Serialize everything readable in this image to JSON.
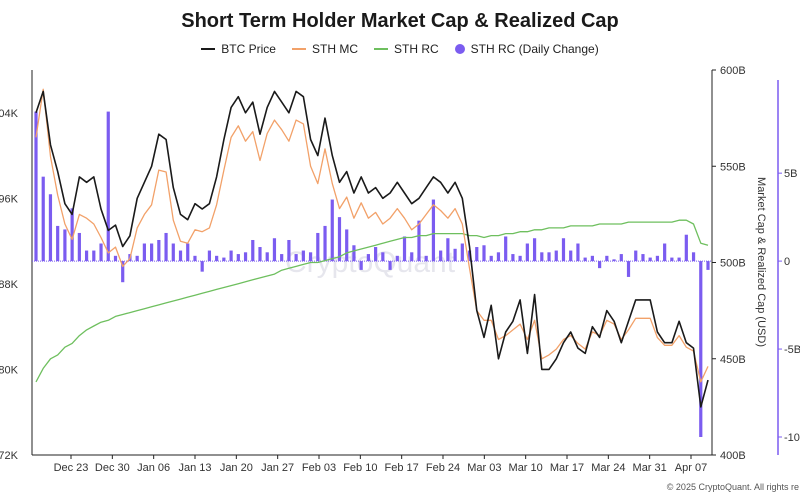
{
  "chart_data": {
    "type": "line",
    "title": "Short Term Holder Market Cap & Realized Cap",
    "x_labels": [
      "Dec 23",
      "Dec 30",
      "Jan 06",
      "Jan 13",
      "Jan 20",
      "Jan 27",
      "Feb 03",
      "Feb 10",
      "Feb 17",
      "Feb 24",
      "Mar 03",
      "Mar 10",
      "Mar 17",
      "Mar 24",
      "Mar 31",
      "Apr 07"
    ],
    "left_axis": {
      "ticks": [
        "72K",
        "80K",
        "88K",
        "96K",
        "04K"
      ],
      "range": [
        72000,
        108000
      ]
    },
    "right_axis": {
      "ticks": [
        "400B",
        "450B",
        "500B",
        "550B",
        "600B"
      ],
      "range": [
        400,
        600
      ],
      "title": "Market Cap & Realized Cap (USD)"
    },
    "far_right_axis": {
      "ticks": [
        "-10",
        "-5B",
        "0",
        "5B"
      ],
      "range": [
        -10,
        9.5
      ]
    },
    "series": [
      {
        "name": "BTC Price",
        "color": "#1a1a1a",
        "axis": "left",
        "values": [
          104000,
          106000,
          101000,
          98500,
          95500,
          94500,
          98000,
          97500,
          98000,
          95000,
          93000,
          93500,
          91500,
          92500,
          96000,
          97500,
          99000,
          102000,
          101500,
          97000,
          94500,
          94000,
          95500,
          95000,
          95500,
          98000,
          101500,
          104500,
          105500,
          104000,
          105000,
          102000,
          104500,
          106000,
          105000,
          104000,
          106000,
          105500,
          101500,
          100000,
          103500,
          100000,
          97500,
          98500,
          96500,
          98000,
          96500,
          97000,
          96000,
          96500,
          97500,
          96500,
          95500,
          96000,
          97000,
          98000,
          97500,
          96500,
          97500,
          96000,
          91500,
          85500,
          83000,
          86000,
          81000,
          83500,
          84500,
          86500,
          81500,
          87000,
          80000,
          80000,
          81000,
          82500,
          83500,
          82000,
          81500,
          84000,
          83000,
          85500,
          84500,
          82500,
          84500,
          86500,
          86500,
          86500,
          83500,
          82500,
          82500,
          84500,
          82500,
          82000,
          76500,
          79000
        ]
      },
      {
        "name": "STH MC",
        "color": "#f2a169",
        "axis": "right",
        "values": [
          565,
          590,
          555,
          535,
          520,
          512,
          525,
          523,
          520,
          513,
          505,
          508,
          498,
          502,
          518,
          525,
          530,
          548,
          547,
          522,
          511,
          510,
          517,
          516,
          518,
          530,
          548,
          565,
          571,
          563,
          568,
          553,
          567,
          574,
          569,
          563,
          574,
          572,
          550,
          541,
          559,
          541,
          528,
          534,
          523,
          531,
          523,
          526,
          520,
          523,
          528,
          523,
          517,
          520,
          525,
          530,
          527,
          523,
          528,
          520,
          497,
          475,
          470,
          470,
          460,
          462,
          465,
          468,
          460,
          470,
          450,
          452,
          455,
          460,
          462,
          458,
          455,
          464,
          462,
          470,
          468,
          460,
          465,
          471,
          471,
          471,
          461,
          457,
          457,
          462,
          456,
          454,
          438,
          446
        ]
      },
      {
        "name": "STH RC",
        "color": "#6ebf5e",
        "axis": "right",
        "values": [
          438,
          445,
          450,
          452,
          456,
          458,
          462,
          465,
          467,
          469,
          470,
          472,
          473,
          474,
          475,
          476,
          477,
          478,
          479,
          480,
          481,
          482,
          483,
          484,
          485,
          486,
          487,
          488,
          489,
          490,
          491,
          492,
          493,
          494,
          496,
          497,
          498,
          499,
          500,
          500,
          501,
          502,
          503,
          505,
          506,
          507,
          508,
          509,
          510,
          511,
          512,
          513,
          513,
          514,
          514,
          515,
          515,
          515,
          515,
          515,
          514,
          514,
          513,
          514,
          514,
          515,
          515,
          516,
          516,
          517,
          517,
          518,
          518,
          518,
          519,
          519,
          519,
          519,
          520,
          520,
          520,
          520,
          521,
          521,
          521,
          521,
          521,
          521,
          521,
          522,
          522,
          520,
          510,
          509
        ]
      },
      {
        "name": "STH RC (Daily Change)",
        "color": "#7b5cf0",
        "axis": "far_right",
        "values": [
          8.5,
          4.8,
          3.8,
          2.0,
          1.8,
          3.0,
          1.6,
          0.6,
          0.6,
          1.0,
          8.5,
          0.3,
          -1.2,
          0.4,
          0.3,
          1.0,
          1.0,
          1.2,
          1.6,
          1.0,
          0.6,
          1.0,
          0.3,
          -0.6,
          0.6,
          0.3,
          0.2,
          0.6,
          0.4,
          0.5,
          1.2,
          0.8,
          0.5,
          1.3,
          0.4,
          1.2,
          0.4,
          0.6,
          0.5,
          1.6,
          2.0,
          3.5,
          2.5,
          1.8,
          0.9,
          -0.5,
          0.4,
          0.8,
          0.5,
          -0.5,
          0.3,
          1.4,
          0.5,
          2.3,
          0.3,
          3.5,
          0.6,
          1.3,
          0.7,
          1.0,
          0.6,
          0.8,
          0.9,
          0.3,
          0.5,
          1.4,
          0.4,
          0.3,
          1.0,
          1.3,
          0.5,
          0.5,
          0.6,
          1.3,
          0.6,
          1.0,
          0.2,
          0.3,
          -0.4,
          0.3,
          0.1,
          0.4,
          -0.9,
          0.6,
          0.4,
          0.2,
          0.3,
          1.0,
          0.2,
          0.2,
          1.5,
          0.5,
          -10.0,
          -0.5
        ]
      }
    ]
  },
  "watermark": "CryptoQuant",
  "footer": "© 2025 CryptoQuant. All rights re"
}
